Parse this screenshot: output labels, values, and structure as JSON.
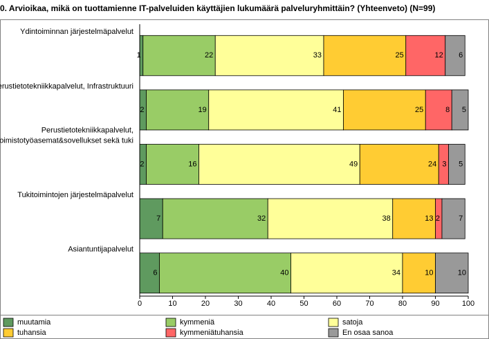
{
  "chart_data": {
    "type": "bar",
    "orientation": "horizontal",
    "stacked": true,
    "title": "0. Arvioikaa, mikä on tuottamienne IT-palveluiden käyttäjien lukumäärä palveluryhmittäin? (Yhteenveto) (N=99)",
    "categories": [
      [
        "Ydintoiminnan järjestelmäpalvelut"
      ],
      [
        "erustietotekniikkapalvelut, Infrastruktuuri"
      ],
      [
        "Perustietotekniikkapalvelut,",
        "Toimistotyöasemat&sovellukset sekä tuki"
      ],
      [
        "Tukitoimintojen järjestelmäpalvelut"
      ],
      [
        "Asiantuntijapalvelut"
      ]
    ],
    "series": [
      {
        "name": "muutamia",
        "color": "#5f9a5f",
        "values": [
          1,
          2,
          2,
          7,
          6
        ]
      },
      {
        "name": "kymmeniä",
        "color": "#99cc66",
        "values": [
          22,
          19,
          16,
          32,
          40
        ]
      },
      {
        "name": "satoja",
        "color": "#ffff99",
        "values": [
          33,
          41,
          49,
          38,
          34
        ]
      },
      {
        "name": "tuhansia",
        "color": "#ffcc33",
        "values": [
          25,
          25,
          24,
          13,
          10
        ]
      },
      {
        "name": "kymmeniätuhansia",
        "color": "#ff6666",
        "values": [
          12,
          8,
          3,
          2,
          null
        ]
      },
      {
        "name": "En osaa sanoa",
        "color": "#999999",
        "values": [
          6,
          5,
          5,
          7,
          10
        ]
      }
    ],
    "xlim": [
      0,
      100
    ],
    "xticks": [
      0,
      10,
      20,
      30,
      40,
      50,
      60,
      70,
      80,
      90,
      100
    ]
  }
}
